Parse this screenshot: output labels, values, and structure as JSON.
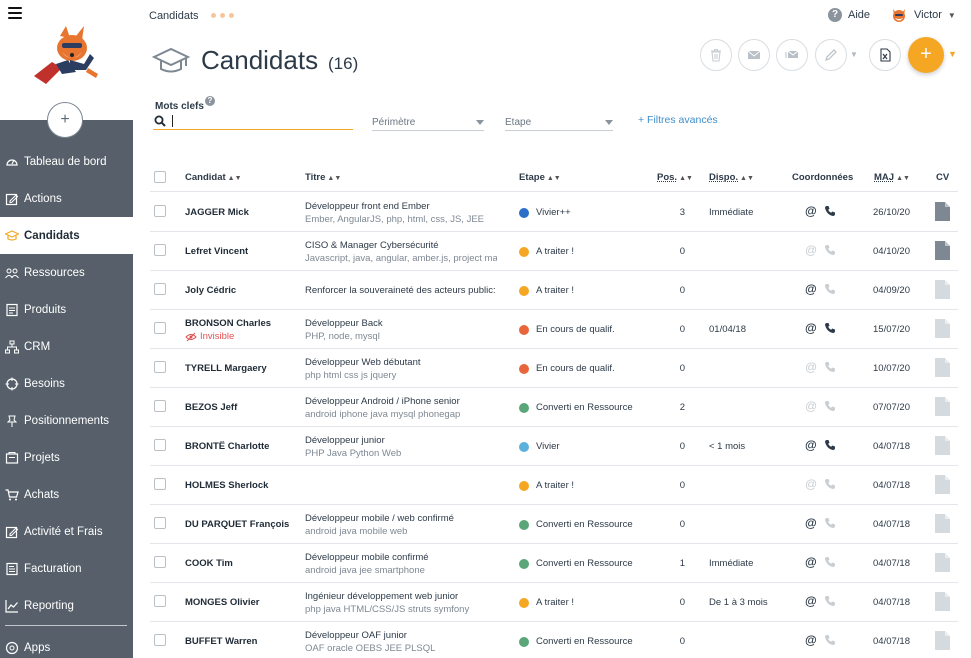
{
  "topbar": {
    "breadcrumb": "Candidats",
    "help_label": "Aide",
    "user_name": "Victor"
  },
  "colors": {
    "accent": "#f5a623",
    "sidebar_bg": "#57606a",
    "link": "#3f8fc9",
    "stage_blue": "#2b6fc9",
    "stage_orange": "#f5a623",
    "stage_darkorange": "#e8663a",
    "stage_green": "#5aa678",
    "stage_lightblue": "#5bb1dd"
  },
  "sidebar": {
    "items": [
      {
        "label": "Tableau de bord",
        "icon": "dashboard-icon"
      },
      {
        "label": "Actions",
        "icon": "edit-icon"
      },
      {
        "label": "Candidats",
        "icon": "graduation-cap-icon",
        "active": true
      },
      {
        "label": "Ressources",
        "icon": "people-icon"
      },
      {
        "label": "Produits",
        "icon": "document-icon"
      },
      {
        "label": "CRM",
        "icon": "org-chart-icon"
      },
      {
        "label": "Besoins",
        "icon": "target-icon"
      },
      {
        "label": "Positionnements",
        "icon": "pin-icon"
      },
      {
        "label": "Projets",
        "icon": "folder-icon"
      },
      {
        "label": "Achats",
        "icon": "cart-icon"
      },
      {
        "label": "Activité et Frais",
        "icon": "edit-icon"
      },
      {
        "label": "Facturation",
        "icon": "invoice-icon"
      },
      {
        "label": "Reporting",
        "icon": "chart-icon"
      }
    ],
    "apps_label": "Apps"
  },
  "page": {
    "title": "Candidats",
    "count": "(16)"
  },
  "filters": {
    "keywords_label": "Mots clefs",
    "keywords_value": "",
    "perimeter_label": "Périmètre",
    "stage_label": "Etape",
    "advanced_label": "+ Filtres avancés"
  },
  "table": {
    "headers": {
      "candidate": "Candidat",
      "title": "Titre",
      "stage": "Etape",
      "pos": "Pos.",
      "dispo": "Dispo.",
      "contact": "Coordonnées",
      "maj": "MAJ",
      "cv": "CV"
    },
    "invisible_label": "Invisible",
    "rows": [
      {
        "name": "JAGGER Mick",
        "title": "Développeur front end Ember",
        "skills": "Ember, AngularJS, php, html, css, JS, JEE",
        "stage": "Vivier++",
        "stage_color": "#2b6fc9",
        "pos": "3",
        "dispo": "Immédiate",
        "email": true,
        "phone": true,
        "maj": "26/10/20",
        "cv": true
      },
      {
        "name": "Lefret Vincent",
        "title": "CISO & Manager Cybersécurité",
        "skills": "Javascript, java, angular, amber.js, project ma",
        "stage": "A traiter !",
        "stage_color": "#f5a623",
        "pos": "0",
        "dispo": "",
        "email": false,
        "phone": false,
        "maj": "04/10/20",
        "cv": true
      },
      {
        "name": "Joly Cédric",
        "title": "Renforcer la souveraineté des acteurs public:",
        "skills": "",
        "stage": "A traiter !",
        "stage_color": "#f5a623",
        "pos": "0",
        "dispo": "",
        "email": true,
        "phone": false,
        "maj": "04/09/20",
        "cv": false
      },
      {
        "name": "BRONSON Charles",
        "invisible": true,
        "title": "Développeur Back",
        "skills": "PHP, node, mysql",
        "stage": "En cours de qualif.",
        "stage_color": "#e8663a",
        "pos": "0",
        "dispo": "01/04/18",
        "email": true,
        "phone": true,
        "maj": "15/07/20",
        "cv": false
      },
      {
        "name": "TYRELL Margaery",
        "title": "Développeur Web débutant",
        "skills": "php html css js jquery",
        "stage": "En cours de qualif.",
        "stage_color": "#e8663a",
        "pos": "0",
        "dispo": "",
        "email": false,
        "phone": false,
        "maj": "10/07/20",
        "cv": false
      },
      {
        "name": "BEZOS Jeff",
        "title": "Développeur Android / iPhone senior",
        "skills": "android iphone java mysql phonegap",
        "stage": "Converti en Ressource",
        "stage_color": "#5aa678",
        "pos": "2",
        "dispo": "",
        "email": false,
        "phone": false,
        "maj": "07/07/20",
        "cv": false
      },
      {
        "name": "BRONTË Charlotte",
        "title": "Développeur junior",
        "skills": "PHP Java Python Web",
        "stage": "Vivier",
        "stage_color": "#5bb1dd",
        "pos": "0",
        "dispo": "< 1 mois",
        "email": true,
        "phone": true,
        "maj": "04/07/18",
        "cv": false
      },
      {
        "name": "HOLMES Sherlock",
        "title": "",
        "skills": "",
        "stage": "A traiter !",
        "stage_color": "#f5a623",
        "pos": "0",
        "dispo": "",
        "email": false,
        "phone": false,
        "maj": "04/07/18",
        "cv": false
      },
      {
        "name": "DU PARQUET François",
        "title": "Développeur mobile / web confirmé",
        "skills": "android java mobile web",
        "stage": "Converti en Ressource",
        "stage_color": "#5aa678",
        "pos": "0",
        "dispo": "",
        "email": true,
        "phone": false,
        "maj": "04/07/18",
        "cv": false
      },
      {
        "name": "COOK Tim",
        "title": "Développeur mobile confirmé",
        "skills": "android java jee smartphone",
        "stage": "Converti en Ressource",
        "stage_color": "#5aa678",
        "pos": "1",
        "dispo": "Immédiate",
        "email": true,
        "phone": false,
        "maj": "04/07/18",
        "cv": false
      },
      {
        "name": "MONGES Olivier",
        "title": "Ingénieur développement web junior",
        "skills": "php java HTML/CSS/JS struts symfony",
        "stage": "A traiter !",
        "stage_color": "#f5a623",
        "pos": "0",
        "dispo": "De 1 à 3 mois",
        "email": true,
        "phone": false,
        "maj": "04/07/18",
        "cv": false
      },
      {
        "name": "BUFFET Warren",
        "title": "Développeur OAF junior",
        "skills": "OAF oracle OEBS JEE PLSQL",
        "stage": "Converti en Ressource",
        "stage_color": "#5aa678",
        "pos": "0",
        "dispo": "",
        "email": true,
        "phone": false,
        "maj": "04/07/18",
        "cv": false
      }
    ]
  }
}
